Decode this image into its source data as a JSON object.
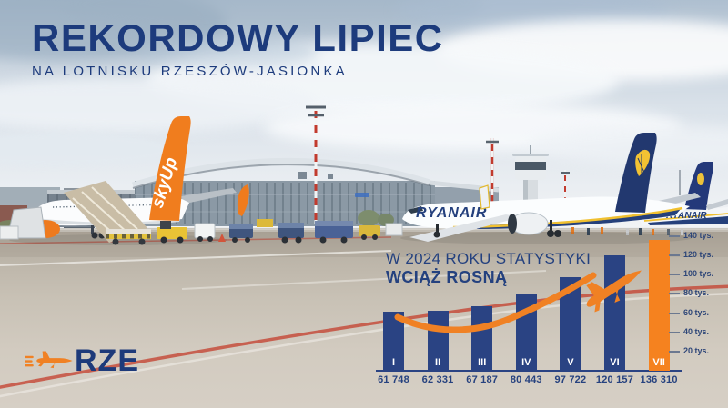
{
  "header": {
    "title": "REKORDOWY LIPIEC",
    "subtitle": "NA LOTNISKU RZESZÓW-JASIONKA"
  },
  "chart": {
    "heading_line1": "W 2024 ROKU STATYSTYKI",
    "heading_line2": "WCIĄŻ ROSNĄ"
  },
  "chart_data": {
    "type": "bar",
    "title": "W 2024 ROKU STATYSTYKI WCIĄŻ ROSNĄ",
    "categories": [
      "I",
      "II",
      "III",
      "IV",
      "V",
      "VI",
      "VII"
    ],
    "values": [
      61748,
      62331,
      67187,
      80443,
      97722,
      120157,
      136310
    ],
    "value_labels": [
      "61 748",
      "62 331",
      "67 187",
      "80 443",
      "97 722",
      "120 157",
      "136 310"
    ],
    "ylim": [
      0,
      140000
    ],
    "ytick_step": 20000,
    "ytick_labels": [
      "20 tys.",
      "40 tys.",
      "60 tys.",
      "80 tys.",
      "100 tys.",
      "120 tys.",
      "140 tys."
    ],
    "grid": false,
    "legend": "none",
    "bar_color": "#2a4383",
    "highlight_index": 6,
    "highlight_color": "#f5821f",
    "annotation": "orange ascending flight-path swoosh with jet silhouette over bars V–VII"
  },
  "logo": {
    "text": "RZE"
  },
  "scene": {
    "skyup_tail_text": "skyUp",
    "ryanair_title": "RYANAIR",
    "ryanair_title_background_plane": "RYANAIR"
  },
  "colors": {
    "navy": "#1d3b7c",
    "bar_navy": "#2a4383",
    "orange": "#f5821f"
  }
}
